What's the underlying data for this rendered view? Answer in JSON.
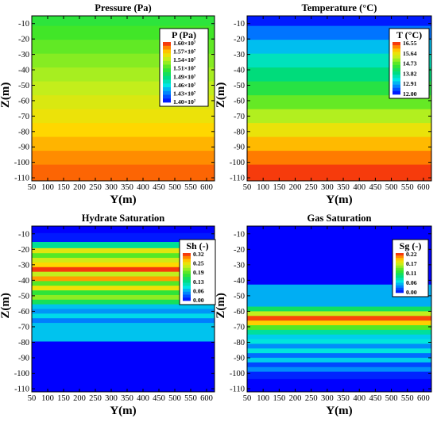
{
  "chart_data": [
    {
      "type": "heatmap",
      "title": "Pressure (Pa)",
      "xlabel": "Y(m)",
      "ylabel": "Z(m)",
      "xlim": [
        50,
        625
      ],
      "ylim": [
        -112,
        -5
      ],
      "xticks": [
        "50",
        "100",
        "150",
        "200",
        "250",
        "300",
        "350",
        "400",
        "450",
        "500",
        "550",
        "600"
      ],
      "yticks": [
        "-10",
        "-20",
        "-30",
        "-40",
        "-50",
        "-60",
        "-70",
        "-80",
        "-90",
        "-100",
        "-110"
      ],
      "grid": false,
      "legend": {
        "title": "P (Pa)",
        "placement": "top-right",
        "entries": [
          "1.60×10⁷",
          "1.57×10⁷",
          "1.54×10⁷",
          "1.51×10⁷",
          "1.49×10⁷",
          "1.46×10⁷",
          "1.43×10⁷",
          "1.40×10⁷"
        ]
      },
      "variable": "Pressure (Pa)",
      "min": 14000000,
      "max": 16000000,
      "z_centers": [
        -7,
        -16,
        -25,
        -34,
        -43,
        -52,
        -61,
        -70,
        -79,
        -88,
        -97,
        -106
      ],
      "values": [
        15050000,
        15130000,
        15200000,
        15280000,
        15350000,
        15420000,
        15500000,
        15570000,
        15650000,
        15720000,
        15800000,
        15870000
      ]
    },
    {
      "type": "heatmap",
      "title": "Temperature (°C)",
      "xlabel": "Y(m)",
      "ylabel": "Z(m)",
      "xlim": [
        50,
        625
      ],
      "ylim": [
        -112,
        -5
      ],
      "xticks": [
        "50",
        "100",
        "150",
        "200",
        "250",
        "300",
        "350",
        "400",
        "450",
        "500",
        "550",
        "600"
      ],
      "yticks": [
        "-10",
        "-20",
        "-30",
        "-40",
        "-50",
        "-60",
        "-70",
        "-80",
        "-90",
        "-100",
        "-110"
      ],
      "grid": false,
      "legend": {
        "title": "T (°C)",
        "placement": "top-right",
        "entries": [
          "16.55",
          "15.64",
          "14.73",
          "13.82",
          "12.91",
          "12.00"
        ]
      },
      "variable": "Temperature",
      "min": 12.0,
      "max": 16.8,
      "z_centers": [
        -7,
        -16,
        -25,
        -34,
        -43,
        -52,
        -61,
        -70,
        -79,
        -88,
        -97,
        -106
      ],
      "values": [
        12.15,
        12.65,
        13.1,
        13.6,
        14.0,
        14.45,
        14.9,
        15.3,
        15.75,
        16.1,
        16.4,
        16.65
      ]
    },
    {
      "type": "heatmap",
      "title": "Hydrate Saturation",
      "xlabel": "Y(m)",
      "ylabel": "Z(m)",
      "xlim": [
        50,
        625
      ],
      "ylim": [
        -112,
        -5
      ],
      "xticks": [
        "50",
        "100",
        "150",
        "200",
        "250",
        "300",
        "350",
        "400",
        "450",
        "500",
        "550",
        "600"
      ],
      "yticks": [
        "-10",
        "-20",
        "-30",
        "-40",
        "-50",
        "-60",
        "-70",
        "-80",
        "-90",
        "-100",
        "-110"
      ],
      "grid": false,
      "legend": {
        "title": "Sh (-)",
        "placement": "top-right",
        "entries": [
          "0.32",
          "0.25",
          "0.19",
          "0.13",
          "0.06",
          "0.00"
        ]
      },
      "variable": "Hydrate saturation",
      "min": 0.0,
      "max": 0.34,
      "z_centers": [
        -6,
        -13,
        -17.5,
        -21,
        -24,
        -27,
        -30,
        -33,
        -36,
        -39,
        -42,
        -45,
        -48,
        -51,
        -54,
        -57,
        -60,
        -63,
        -66,
        -69,
        -90
      ],
      "values": [
        0.0,
        0.01,
        0.13,
        0.26,
        0.2,
        0.25,
        0.28,
        0.33,
        0.24,
        0.3,
        0.2,
        0.27,
        0.18,
        0.22,
        0.16,
        0.08,
        0.06,
        0.09,
        0.05,
        0.08,
        0.0
      ]
    },
    {
      "type": "heatmap",
      "title": "Gas Saturation",
      "xlabel": "Y(m)",
      "ylabel": "Z(m)",
      "xlim": [
        50,
        625
      ],
      "ylim": [
        -112,
        -5
      ],
      "xticks": [
        "50",
        "100",
        "150",
        "200",
        "250",
        "300",
        "350",
        "400",
        "450",
        "500",
        "550",
        "600"
      ],
      "yticks": [
        "-10",
        "-20",
        "-30",
        "-40",
        "-50",
        "-60",
        "-70",
        "-80",
        "-90",
        "-100",
        "-110"
      ],
      "grid": false,
      "legend": {
        "title": "Sg (-)",
        "placement": "top-right",
        "entries": [
          "0.22",
          "0.17",
          "0.11",
          "0.06",
          "0.00"
        ]
      },
      "variable": "Gas saturation",
      "min": 0.0,
      "max": 0.24,
      "z_centers": [
        -30,
        -55.5,
        -58.5,
        -61.5,
        -64.5,
        -67.5,
        -70.5,
        -73.5,
        -76.5,
        -79.5,
        -82.5,
        -85.5,
        -88.5,
        -91.5,
        -94.5,
        -97.5,
        -100.5,
        -107
      ],
      "values": [
        0.0,
        0.05,
        0.11,
        0.17,
        0.23,
        0.2,
        0.14,
        0.09,
        0.06,
        0.07,
        0.04,
        0.07,
        0.03,
        0.06,
        0.02,
        0.04,
        0.01,
        0.0
      ]
    }
  ]
}
